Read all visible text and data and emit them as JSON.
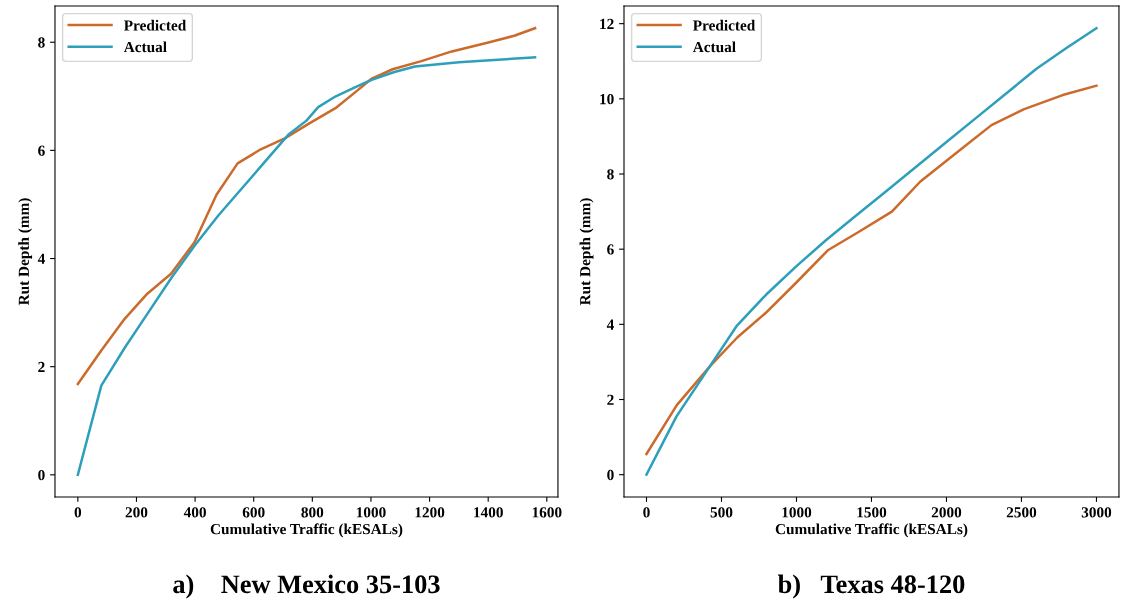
{
  "chart_data": [
    {
      "type": "line",
      "title": "a)    New Mexico 35-103",
      "xlabel": "Cumulative Traffic (kESALs)",
      "ylabel": "Rut Depth (mm)",
      "xlim": [
        -78,
        1638
      ],
      "ylim": [
        -0.41,
        8.67
      ],
      "xticks": [
        0,
        200,
        400,
        600,
        800,
        1000,
        1200,
        1400,
        1600
      ],
      "yticks": [
        0,
        2,
        4,
        6,
        8
      ],
      "grid": false,
      "legend": "top left",
      "series": [
        {
          "name": "Predicted",
          "color": "#cc6a2c",
          "x": [
            0,
            80,
            159,
            237,
            318,
            398,
            473,
            545,
            624,
            706,
            784,
            879,
            952,
            1001,
            1074,
            1172,
            1276,
            1404,
            1489,
            1560
          ],
          "values": [
            1.68,
            2.3,
            2.88,
            3.35,
            3.72,
            4.3,
            5.18,
            5.76,
            6.02,
            6.22,
            6.48,
            6.78,
            7.1,
            7.32,
            7.5,
            7.65,
            7.83,
            8.0,
            8.12,
            8.26
          ]
        },
        {
          "name": "Actual",
          "color": "#2e9fba",
          "x": [
            0,
            80,
            160,
            240,
            320,
            400,
            480,
            560,
            640,
            720,
            780,
            820,
            880,
            960,
            1000,
            1080,
            1150,
            1300,
            1560
          ],
          "values": [
            0,
            1.65,
            2.35,
            3.0,
            3.65,
            4.25,
            4.8,
            5.3,
            5.8,
            6.3,
            6.55,
            6.8,
            7.0,
            7.2,
            7.3,
            7.45,
            7.55,
            7.63,
            7.72
          ]
        }
      ]
    },
    {
      "type": "line",
      "title": "b)   Texas 48-120",
      "xlabel": "Cumulative Traffic (kESALs)",
      "ylabel": "Rut Depth (mm)",
      "xlim": [
        -150,
        3150
      ],
      "ylim": [
        -0.594,
        12.47
      ],
      "xticks": [
        0,
        500,
        1000,
        1500,
        2000,
        2500,
        3000
      ],
      "yticks": [
        0,
        2,
        4,
        6,
        8,
        10,
        12
      ],
      "grid": false,
      "legend": "top left",
      "series": [
        {
          "name": "Predicted",
          "color": "#cc6a2c",
          "x": [
            0,
            202,
            427,
            605,
            794,
            996,
            1209,
            1411,
            1636,
            1826,
            2063,
            2300,
            2514,
            2775,
            3000
          ],
          "values": [
            0.55,
            1.85,
            2.9,
            3.65,
            4.3,
            5.1,
            5.97,
            6.45,
            7.0,
            7.8,
            8.55,
            9.3,
            9.72,
            10.1,
            10.35
          ]
        },
        {
          "name": "Actual",
          "color": "#2e9fba",
          "x": [
            0,
            200,
            400,
            600,
            800,
            1000,
            1200,
            1400,
            1600,
            1800,
            2000,
            2200,
            2400,
            2600,
            2800,
            3000
          ],
          "values": [
            0,
            1.55,
            2.75,
            3.95,
            4.8,
            5.55,
            6.25,
            6.9,
            7.55,
            8.2,
            8.85,
            9.5,
            10.15,
            10.8,
            11.35,
            11.88
          ]
        }
      ]
    }
  ]
}
